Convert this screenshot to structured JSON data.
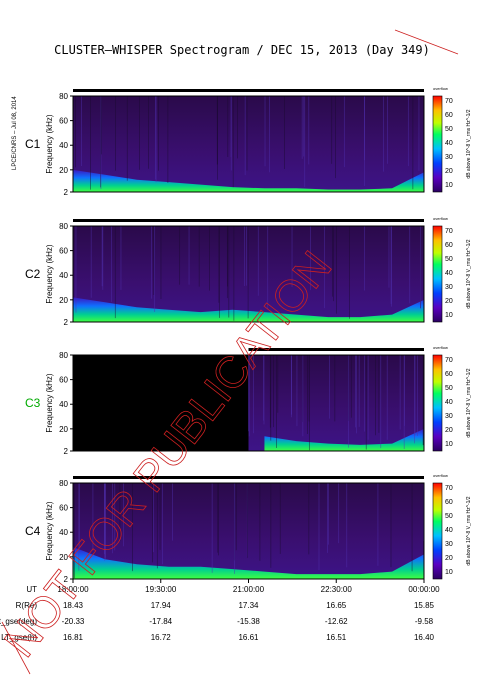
{
  "title": "CLUSTER–WHISPER Spectrogram / DEC 15, 2013 (Day 349)",
  "side_stamp": "LPCE/CNRS – Jul 08, 2014",
  "watermark": "NOT FOR PUBLICATION",
  "colorbar": {
    "ticks": [
      "70",
      "60",
      "50",
      "40",
      "30",
      "20",
      "10"
    ],
    "label": "dB above 10^-8 V_rms Hz^-1/2",
    "top_tag": "overflow"
  },
  "panel_ylabel": "Frequency (kHz)",
  "panel_yticks": [
    "80",
    "60",
    "40",
    "20",
    "2"
  ],
  "ephemeris": {
    "rows": [
      {
        "label": "UT",
        "values": [
          "18:00:00",
          "19:30:00",
          "21:00:00",
          "22:30:00",
          "00:00:00"
        ]
      },
      {
        "label": "R(Re)",
        "values": [
          "18.43",
          "17.94",
          "17.34",
          "16.65",
          "15.85"
        ]
      },
      {
        "label": "Lat_gse(deg)",
        "values": [
          "-20.33",
          "-17.84",
          "-15.38",
          "-12.62",
          "-9.58"
        ]
      },
      {
        "label": "LT_gse(h)",
        "values": [
          "16.81",
          "16.72",
          "16.61",
          "16.51",
          "16.40"
        ]
      }
    ]
  },
  "chart_data": {
    "type": "heatmap",
    "title": "CLUSTER–WHISPER Spectrogram / DEC 15, 2013 (Day 349)",
    "xlabel": "UT",
    "ylabel": "Frequency (kHz)",
    "x_ticks": [
      "18:00:00",
      "19:30:00",
      "21:00:00",
      "22:30:00",
      "00:00:00"
    ],
    "ylim": [
      2,
      80
    ],
    "color_scale": [
      10,
      70
    ],
    "panels": [
      {
        "name": "C1",
        "label_color": "#000000",
        "data_gap_until": null,
        "band_top_khz": [
          20,
          16,
          12,
          10,
          8,
          6,
          5,
          5,
          4,
          4,
          5,
          18
        ]
      },
      {
        "name": "C2",
        "label_color": "#000000",
        "data_gap_until": null,
        "band_top_khz": [
          22,
          18,
          14,
          12,
          10,
          12,
          10,
          8,
          6,
          6,
          8,
          20
        ]
      },
      {
        "name": "C3",
        "label_color": "#00aa00",
        "data_gap_until": "21:00:00",
        "band_top_khz": [
          null,
          null,
          null,
          null,
          null,
          null,
          14,
          10,
          8,
          7,
          8,
          20
        ]
      },
      {
        "name": "C4",
        "label_color": "#000000",
        "data_gap_until": null,
        "band_top_khz": [
          28,
          18,
          14,
          12,
          12,
          10,
          8,
          6,
          6,
          6,
          8,
          22
        ]
      }
    ]
  }
}
